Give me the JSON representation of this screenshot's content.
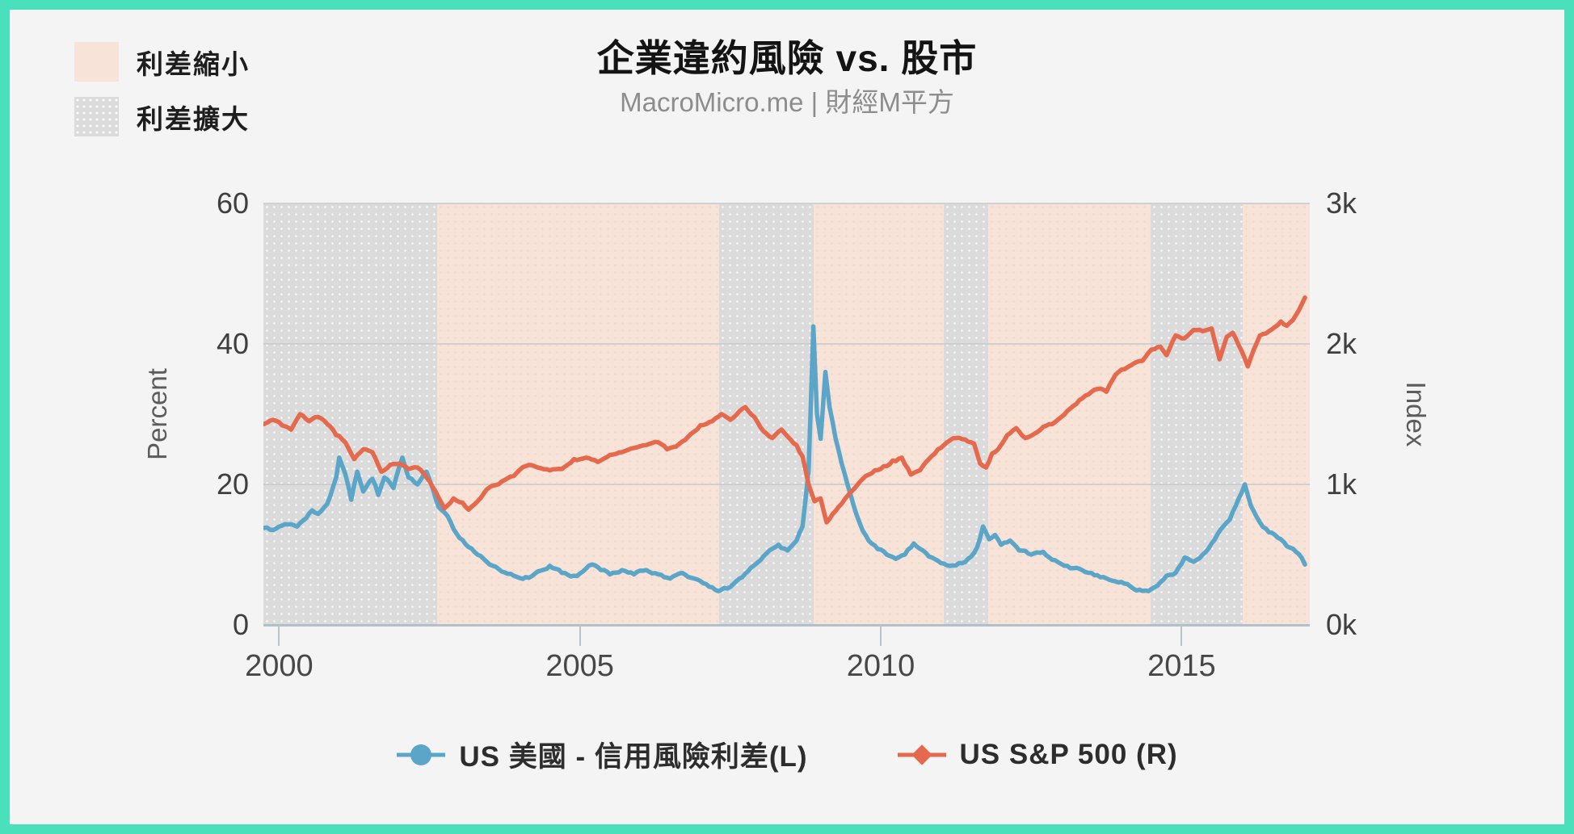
{
  "header": {
    "title": "企業違約風險 vs. 股市",
    "subtitle": "MacroMicro.me | 財經M平方"
  },
  "band_legend": {
    "narrow_label": "利差縮小",
    "widen_label": "利差擴大",
    "narrow_color": "#f8e3d8",
    "widen_color": "#dbdbdb"
  },
  "series_legend": [
    {
      "label": "US 美國 - 信用風險利差(L)",
      "color": "#5ba6c8",
      "marker": "circle"
    },
    {
      "label": "US S&P 500 (R)",
      "color": "#e4694d",
      "marker": "diamond"
    }
  ],
  "colors": {
    "frame_border": "#4ae0bc",
    "panel_bg": "#f4f4f4",
    "gridline": "#c9cdd0",
    "axis_line": "#b2c0c7",
    "tick_line": "#b9c4c9",
    "spread_line": "#5ba6c8",
    "sp500_line": "#e4694d"
  },
  "chart_data": {
    "type": "line",
    "title": "企業違約風險 vs. 股市",
    "subtitle": "MacroMicro.me | 財經M平方",
    "x_axis": {
      "range": [
        1999.74,
        2017.13
      ],
      "ticks": [
        2000,
        2005,
        2010,
        2015
      ]
    },
    "y_left": {
      "label": "Percent",
      "range": [
        0,
        60
      ],
      "ticks": [
        0,
        20,
        40,
        60
      ]
    },
    "y_right": {
      "label": "Index",
      "range": [
        0,
        3000
      ],
      "tick_values": [
        0,
        1000,
        2000,
        3000
      ],
      "tick_labels": [
        "0k",
        "1k",
        "2k",
        "3k"
      ]
    },
    "legend_position": "bottom",
    "grid": "horizontal-only",
    "bands": [
      {
        "type": "widen",
        "from": 1999.74,
        "to": 2002.63
      },
      {
        "type": "narrow",
        "from": 2002.63,
        "to": 2007.32
      },
      {
        "type": "widen",
        "from": 2007.32,
        "to": 2008.88
      },
      {
        "type": "narrow",
        "from": 2008.88,
        "to": 2011.05
      },
      {
        "type": "widen",
        "from": 2011.05,
        "to": 2011.78
      },
      {
        "type": "narrow",
        "from": 2011.78,
        "to": 2014.49
      },
      {
        "type": "widen",
        "from": 2014.49,
        "to": 2016.02
      },
      {
        "type": "narrow",
        "from": 2016.02,
        "to": 2017.13
      }
    ],
    "series": [
      {
        "name": "US 美國 - 信用風險利差(L)",
        "axis": "left",
        "unit": "percent",
        "color": "#5ba6c8",
        "points": [
          [
            1999.75,
            13.8
          ],
          [
            1999.9,
            13.5
          ],
          [
            2000.0,
            14.0
          ],
          [
            2000.15,
            14.3
          ],
          [
            2000.3,
            14.0
          ],
          [
            2000.45,
            15.2
          ],
          [
            2000.55,
            16.3
          ],
          [
            2000.65,
            15.8
          ],
          [
            2000.8,
            17.2
          ],
          [
            2000.95,
            21.0
          ],
          [
            2001.0,
            23.8
          ],
          [
            2001.1,
            21.5
          ],
          [
            2001.2,
            17.8
          ],
          [
            2001.3,
            21.8
          ],
          [
            2001.4,
            19.0
          ],
          [
            2001.55,
            20.8
          ],
          [
            2001.65,
            18.5
          ],
          [
            2001.75,
            21.0
          ],
          [
            2001.9,
            19.5
          ],
          [
            2002.05,
            23.8
          ],
          [
            2002.15,
            21.0
          ],
          [
            2002.3,
            20.0
          ],
          [
            2002.45,
            21.8
          ],
          [
            2002.55,
            19.5
          ],
          [
            2002.65,
            16.8
          ],
          [
            2002.8,
            15.5
          ],
          [
            2002.95,
            13.0
          ],
          [
            2003.1,
            11.5
          ],
          [
            2003.3,
            10.0
          ],
          [
            2003.5,
            8.6
          ],
          [
            2003.7,
            7.6
          ],
          [
            2003.9,
            7.0
          ],
          [
            2004.1,
            6.8
          ],
          [
            2004.3,
            7.6
          ],
          [
            2004.5,
            8.4
          ],
          [
            2004.7,
            7.4
          ],
          [
            2004.9,
            7.0
          ],
          [
            2005.05,
            7.6
          ],
          [
            2005.2,
            8.6
          ],
          [
            2005.35,
            7.8
          ],
          [
            2005.5,
            7.2
          ],
          [
            2005.7,
            7.8
          ],
          [
            2005.9,
            7.2
          ],
          [
            2006.1,
            7.8
          ],
          [
            2006.3,
            7.2
          ],
          [
            2006.5,
            6.6
          ],
          [
            2006.7,
            7.4
          ],
          [
            2006.9,
            6.6
          ],
          [
            2007.1,
            5.8
          ],
          [
            2007.3,
            4.8
          ],
          [
            2007.5,
            5.4
          ],
          [
            2007.7,
            6.8
          ],
          [
            2007.85,
            8.2
          ],
          [
            2008.0,
            9.2
          ],
          [
            2008.15,
            10.6
          ],
          [
            2008.3,
            11.4
          ],
          [
            2008.45,
            10.6
          ],
          [
            2008.6,
            12.0
          ],
          [
            2008.7,
            14.0
          ],
          [
            2008.8,
            22.0
          ],
          [
            2008.88,
            42.5
          ],
          [
            2008.94,
            30.0
          ],
          [
            2009.0,
            26.5
          ],
          [
            2009.08,
            36.0
          ],
          [
            2009.15,
            31.0
          ],
          [
            2009.25,
            26.5
          ],
          [
            2009.35,
            23.0
          ],
          [
            2009.5,
            18.5
          ],
          [
            2009.65,
            14.5
          ],
          [
            2009.8,
            12.0
          ],
          [
            2009.95,
            10.8
          ],
          [
            2010.1,
            10.0
          ],
          [
            2010.25,
            9.4
          ],
          [
            2010.4,
            10.0
          ],
          [
            2010.55,
            11.6
          ],
          [
            2010.7,
            10.6
          ],
          [
            2010.85,
            9.6
          ],
          [
            2011.0,
            8.8
          ],
          [
            2011.15,
            8.4
          ],
          [
            2011.3,
            8.8
          ],
          [
            2011.45,
            9.4
          ],
          [
            2011.6,
            11.0
          ],
          [
            2011.7,
            14.0
          ],
          [
            2011.8,
            12.2
          ],
          [
            2011.9,
            12.8
          ],
          [
            2012.0,
            11.4
          ],
          [
            2012.15,
            12.0
          ],
          [
            2012.3,
            10.6
          ],
          [
            2012.5,
            10.0
          ],
          [
            2012.7,
            10.4
          ],
          [
            2012.9,
            9.2
          ],
          [
            2013.1,
            8.4
          ],
          [
            2013.3,
            8.0
          ],
          [
            2013.5,
            7.4
          ],
          [
            2013.7,
            6.8
          ],
          [
            2013.9,
            6.2
          ],
          [
            2014.1,
            5.8
          ],
          [
            2014.3,
            5.0
          ],
          [
            2014.45,
            4.8
          ],
          [
            2014.6,
            5.6
          ],
          [
            2014.75,
            7.0
          ],
          [
            2014.9,
            7.4
          ],
          [
            2015.05,
            9.6
          ],
          [
            2015.2,
            9.0
          ],
          [
            2015.35,
            10.0
          ],
          [
            2015.5,
            11.6
          ],
          [
            2015.65,
            13.6
          ],
          [
            2015.8,
            15.0
          ],
          [
            2015.95,
            18.0
          ],
          [
            2016.05,
            20.0
          ],
          [
            2016.15,
            17.0
          ],
          [
            2016.3,
            14.6
          ],
          [
            2016.45,
            13.2
          ],
          [
            2016.6,
            12.4
          ],
          [
            2016.75,
            11.2
          ],
          [
            2016.9,
            10.4
          ],
          [
            2017.05,
            8.6
          ]
        ]
      },
      {
        "name": "US S&P 500 (R)",
        "axis": "right",
        "unit": "index",
        "color": "#e4694d",
        "points": [
          [
            1999.75,
            1430
          ],
          [
            1999.9,
            1460
          ],
          [
            2000.05,
            1420
          ],
          [
            2000.2,
            1390
          ],
          [
            2000.35,
            1500
          ],
          [
            2000.5,
            1450
          ],
          [
            2000.65,
            1480
          ],
          [
            2000.8,
            1430
          ],
          [
            2000.95,
            1350
          ],
          [
            2001.1,
            1300
          ],
          [
            2001.25,
            1180
          ],
          [
            2001.4,
            1250
          ],
          [
            2001.55,
            1230
          ],
          [
            2001.7,
            1090
          ],
          [
            2001.85,
            1140
          ],
          [
            2002.0,
            1150
          ],
          [
            2002.15,
            1110
          ],
          [
            2002.3,
            1120
          ],
          [
            2002.45,
            1050
          ],
          [
            2002.6,
            950
          ],
          [
            2002.75,
            830
          ],
          [
            2002.9,
            900
          ],
          [
            2003.05,
            870
          ],
          [
            2003.15,
            820
          ],
          [
            2003.3,
            880
          ],
          [
            2003.5,
            980
          ],
          [
            2003.7,
            1020
          ],
          [
            2003.9,
            1060
          ],
          [
            2004.1,
            1130
          ],
          [
            2004.3,
            1120
          ],
          [
            2004.5,
            1100
          ],
          [
            2004.7,
            1110
          ],
          [
            2004.9,
            1180
          ],
          [
            2005.1,
            1190
          ],
          [
            2005.3,
            1160
          ],
          [
            2005.5,
            1210
          ],
          [
            2005.7,
            1230
          ],
          [
            2005.9,
            1260
          ],
          [
            2006.1,
            1280
          ],
          [
            2006.3,
            1300
          ],
          [
            2006.45,
            1250
          ],
          [
            2006.6,
            1270
          ],
          [
            2006.8,
            1340
          ],
          [
            2007.0,
            1420
          ],
          [
            2007.2,
            1450
          ],
          [
            2007.35,
            1500
          ],
          [
            2007.5,
            1460
          ],
          [
            2007.65,
            1520
          ],
          [
            2007.75,
            1550
          ],
          [
            2007.9,
            1480
          ],
          [
            2008.05,
            1380
          ],
          [
            2008.2,
            1330
          ],
          [
            2008.35,
            1390
          ],
          [
            2008.5,
            1320
          ],
          [
            2008.6,
            1280
          ],
          [
            2008.7,
            1200
          ],
          [
            2008.8,
            1000
          ],
          [
            2008.9,
            880
          ],
          [
            2009.0,
            900
          ],
          [
            2009.1,
            730
          ],
          [
            2009.2,
            790
          ],
          [
            2009.3,
            840
          ],
          [
            2009.45,
            920
          ],
          [
            2009.6,
            990
          ],
          [
            2009.75,
            1060
          ],
          [
            2009.9,
            1100
          ],
          [
            2010.05,
            1130
          ],
          [
            2010.2,
            1170
          ],
          [
            2010.35,
            1190
          ],
          [
            2010.5,
            1070
          ],
          [
            2010.65,
            1100
          ],
          [
            2010.8,
            1180
          ],
          [
            2010.95,
            1250
          ],
          [
            2011.1,
            1300
          ],
          [
            2011.25,
            1330
          ],
          [
            2011.4,
            1320
          ],
          [
            2011.55,
            1290
          ],
          [
            2011.65,
            1150
          ],
          [
            2011.75,
            1120
          ],
          [
            2011.85,
            1220
          ],
          [
            2011.95,
            1250
          ],
          [
            2012.1,
            1350
          ],
          [
            2012.25,
            1400
          ],
          [
            2012.4,
            1330
          ],
          [
            2012.55,
            1360
          ],
          [
            2012.7,
            1410
          ],
          [
            2012.85,
            1430
          ],
          [
            2013.0,
            1480
          ],
          [
            2013.15,
            1540
          ],
          [
            2013.3,
            1600
          ],
          [
            2013.45,
            1640
          ],
          [
            2013.6,
            1680
          ],
          [
            2013.75,
            1660
          ],
          [
            2013.9,
            1780
          ],
          [
            2014.05,
            1820
          ],
          [
            2014.2,
            1860
          ],
          [
            2014.35,
            1880
          ],
          [
            2014.5,
            1960
          ],
          [
            2014.65,
            1980
          ],
          [
            2014.75,
            1920
          ],
          [
            2014.9,
            2060
          ],
          [
            2015.05,
            2040
          ],
          [
            2015.2,
            2100
          ],
          [
            2015.35,
            2090
          ],
          [
            2015.5,
            2110
          ],
          [
            2015.63,
            1890
          ],
          [
            2015.75,
            2050
          ],
          [
            2015.85,
            2080
          ],
          [
            2015.95,
            1990
          ],
          [
            2016.1,
            1840
          ],
          [
            2016.2,
            1960
          ],
          [
            2016.3,
            2060
          ],
          [
            2016.45,
            2090
          ],
          [
            2016.55,
            2120
          ],
          [
            2016.65,
            2160
          ],
          [
            2016.75,
            2130
          ],
          [
            2016.85,
            2170
          ],
          [
            2016.95,
            2240
          ],
          [
            2017.05,
            2330
          ]
        ]
      }
    ]
  }
}
